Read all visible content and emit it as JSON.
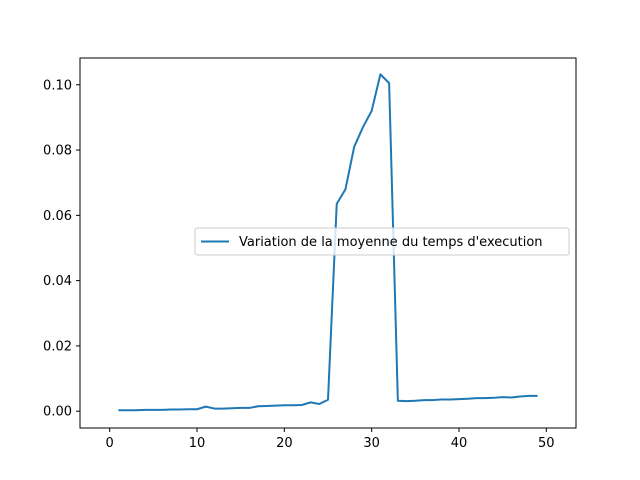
{
  "chart_data": {
    "type": "line",
    "title": "",
    "xlabel": "",
    "ylabel": "",
    "xlim": [
      -3.4,
      53.4
    ],
    "ylim": [
      -0.00515,
      0.1082
    ],
    "x_ticks": [
      0,
      10,
      20,
      30,
      40,
      50
    ],
    "x_tick_labels": [
      "0",
      "10",
      "20",
      "30",
      "40",
      "50"
    ],
    "y_ticks": [
      0.0,
      0.02,
      0.04,
      0.06,
      0.08,
      0.1
    ],
    "y_tick_labels": [
      "0.00",
      "0.02",
      "0.04",
      "0.06",
      "0.08",
      "0.10"
    ],
    "grid": false,
    "legend_position": "center-right",
    "series": [
      {
        "name": "Variation de la moyenne du temps d'execution",
        "color": "#1f77b4",
        "x": [
          1,
          2,
          3,
          4,
          5,
          6,
          7,
          8,
          9,
          10,
          11,
          12,
          13,
          14,
          15,
          16,
          17,
          18,
          19,
          20,
          21,
          22,
          23,
          24,
          25,
          26,
          27,
          28,
          29,
          30,
          31,
          32,
          33,
          34,
          35,
          36,
          37,
          38,
          39,
          40,
          41,
          42,
          43,
          44,
          45,
          46,
          47,
          48,
          49
        ],
        "y": [
          0.0003,
          0.0003,
          0.0003,
          0.0004,
          0.0004,
          0.0004,
          0.0005,
          0.0005,
          0.0006,
          0.0006,
          0.0014,
          0.0008,
          0.0008,
          0.0009,
          0.001,
          0.001,
          0.0015,
          0.0016,
          0.0017,
          0.0018,
          0.0018,
          0.0019,
          0.0027,
          0.0022,
          0.0035,
          0.0635,
          0.068,
          0.081,
          0.087,
          0.092,
          0.1032,
          0.1005,
          0.0032,
          0.0031,
          0.0032,
          0.0034,
          0.0034,
          0.0036,
          0.0036,
          0.0037,
          0.0038,
          0.004,
          0.004,
          0.0041,
          0.0043,
          0.0042,
          0.0045,
          0.0047,
          0.0047
        ]
      }
    ]
  }
}
